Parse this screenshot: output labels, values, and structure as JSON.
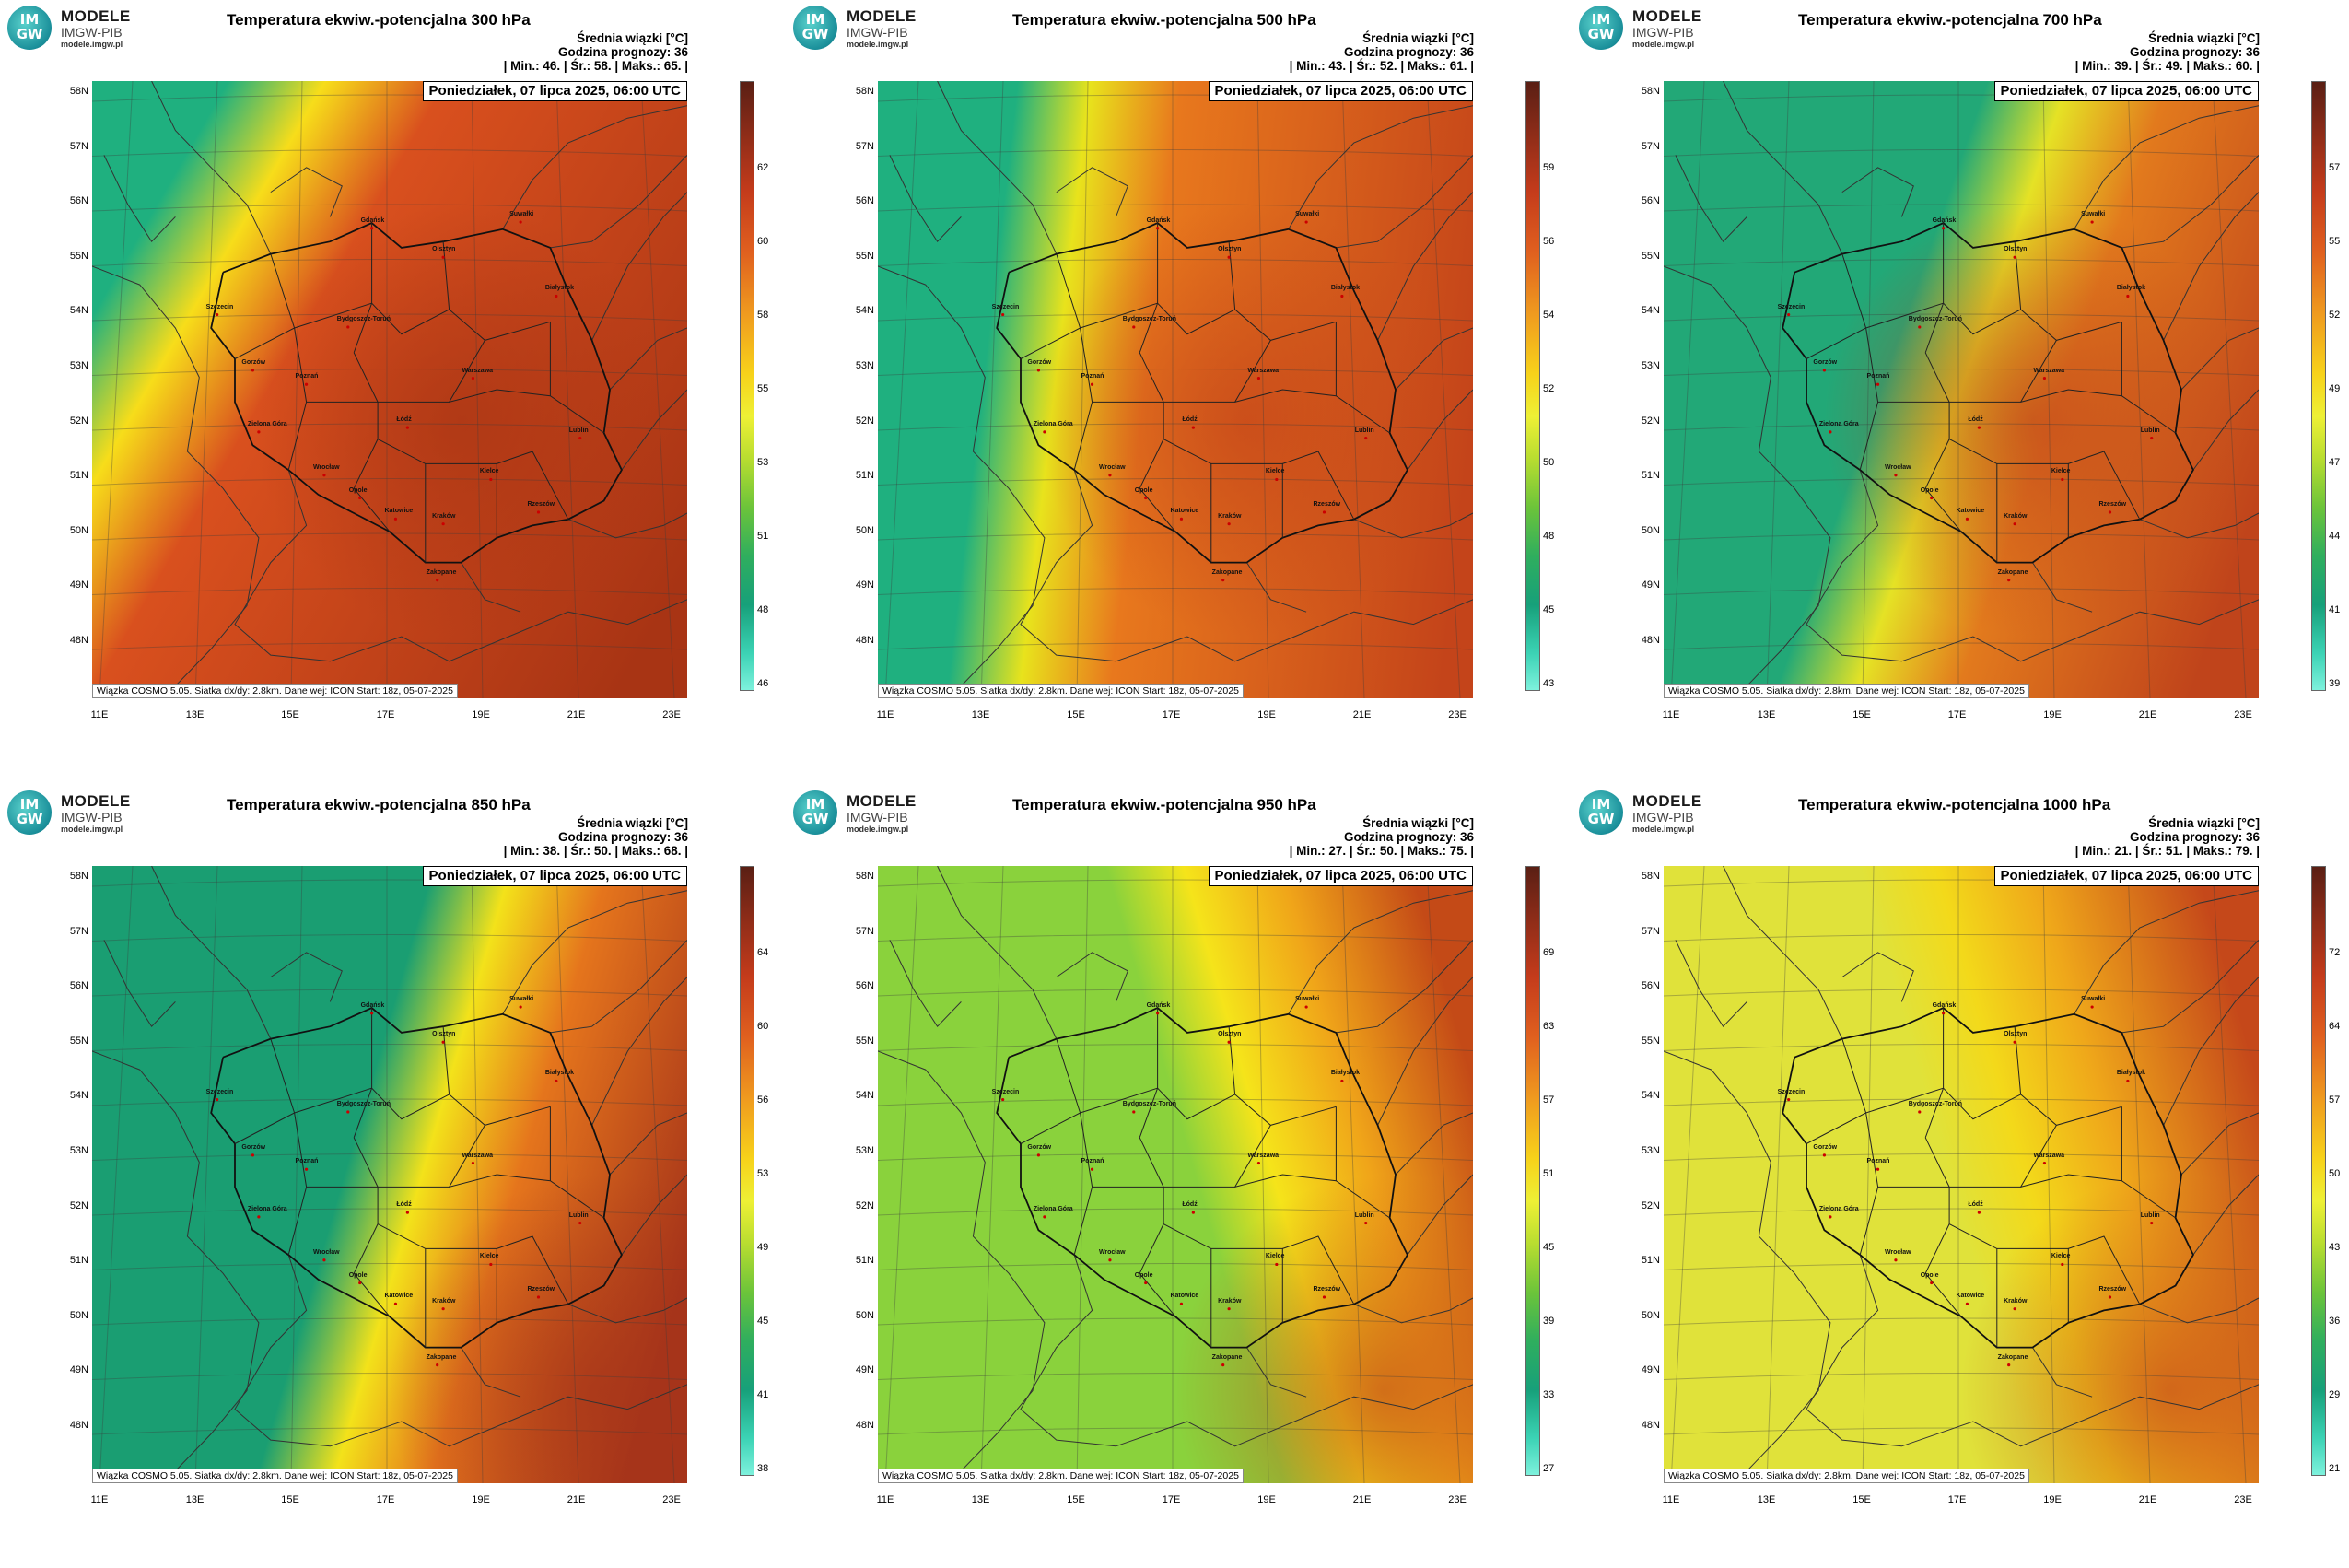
{
  "logo": {
    "badge_top": "IM",
    "badge_bottom": "GW",
    "name": "MODELE",
    "org": "IMGW-PIB",
    "url": "modele.imgw.pl"
  },
  "common": {
    "date": "Poniedziałek, 07 lipca 2025, 06:00 UTC",
    "footer": "Wiązka COSMO 5.05. Siatka dx/dy: 2.8km. Dane wej: ICON Start: 18z, 05-07-2025",
    "mean_label": "Średnia wiązki [°C]",
    "forecast_hour": "Godzina prognozy: 36",
    "lat_labels": [
      "58N",
      "57N",
      "56N",
      "55N",
      "54N",
      "53N",
      "52N",
      "51N",
      "50N",
      "49N",
      "48N"
    ],
    "lon_labels": [
      "11E",
      "13E",
      "15E",
      "17E",
      "19E",
      "21E",
      "23E"
    ],
    "cities": [
      "Gdańsk",
      "Olsztyn",
      "Suwałki",
      "Białystok",
      "Szczecin",
      "Bydgoszcz-Toruń",
      "Gorzów",
      "Poznań",
      "Warszawa",
      "Zielona Góra",
      "Łódź",
      "Lublin",
      "Wrocław",
      "Kielce",
      "Opole",
      "Katowice",
      "Kraków",
      "Rzeszów",
      "Zakopane"
    ]
  },
  "panels": [
    {
      "title": "Temperatura ekwiw.-potencjalna 300 hPa",
      "stats": "| Min.:    46. | Śr.:    58. | Maks.:    65. |",
      "min": 46,
      "mean": 58,
      "max": 65,
      "colorbar_ticks": [
        "62",
        "60",
        "58",
        "55",
        "53",
        "51",
        "48",
        "46"
      ]
    },
    {
      "title": "Temperatura ekwiw.-potencjalna 500 hPa",
      "stats": "| Min.:    43. | Śr.:    52. | Maks.:    61. |",
      "min": 43,
      "mean": 52,
      "max": 61,
      "colorbar_ticks": [
        "59",
        "56",
        "54",
        "52",
        "50",
        "48",
        "45",
        "43"
      ]
    },
    {
      "title": "Temperatura ekwiw.-potencjalna 700 hPa",
      "stats": "| Min.:    39. | Śr.:    49. | Maks.:    60. |",
      "min": 39,
      "mean": 49,
      "max": 60,
      "colorbar_ticks": [
        "57",
        "55",
        "52",
        "49",
        "47",
        "44",
        "41",
        "39"
      ]
    },
    {
      "title": "Temperatura ekwiw.-potencjalna 850 hPa",
      "stats": "| Min.:    38. | Śr.:    50. | Maks.:    68. |",
      "min": 38,
      "mean": 50,
      "max": 68,
      "colorbar_ticks": [
        "64",
        "60",
        "56",
        "53",
        "49",
        "45",
        "41",
        "38"
      ]
    },
    {
      "title": "Temperatura ekwiw.-potencjalna 950 hPa",
      "stats": "| Min.:    27. | Śr.:    50. | Maks.:    75. |",
      "min": 27,
      "mean": 50,
      "max": 75,
      "colorbar_ticks": [
        "69",
        "63",
        "57",
        "51",
        "45",
        "39",
        "33",
        "27"
      ]
    },
    {
      "title": "Temperatura ekwiw.-potencjalna 1000 hPa",
      "stats": "| Min.:    21. | Śr.:    51. | Maks.:    79. |",
      "min": 21,
      "mean": 51,
      "max": 79,
      "colorbar_ticks": [
        "72",
        "64",
        "57",
        "50",
        "43",
        "36",
        "29",
        "21"
      ]
    }
  ]
}
